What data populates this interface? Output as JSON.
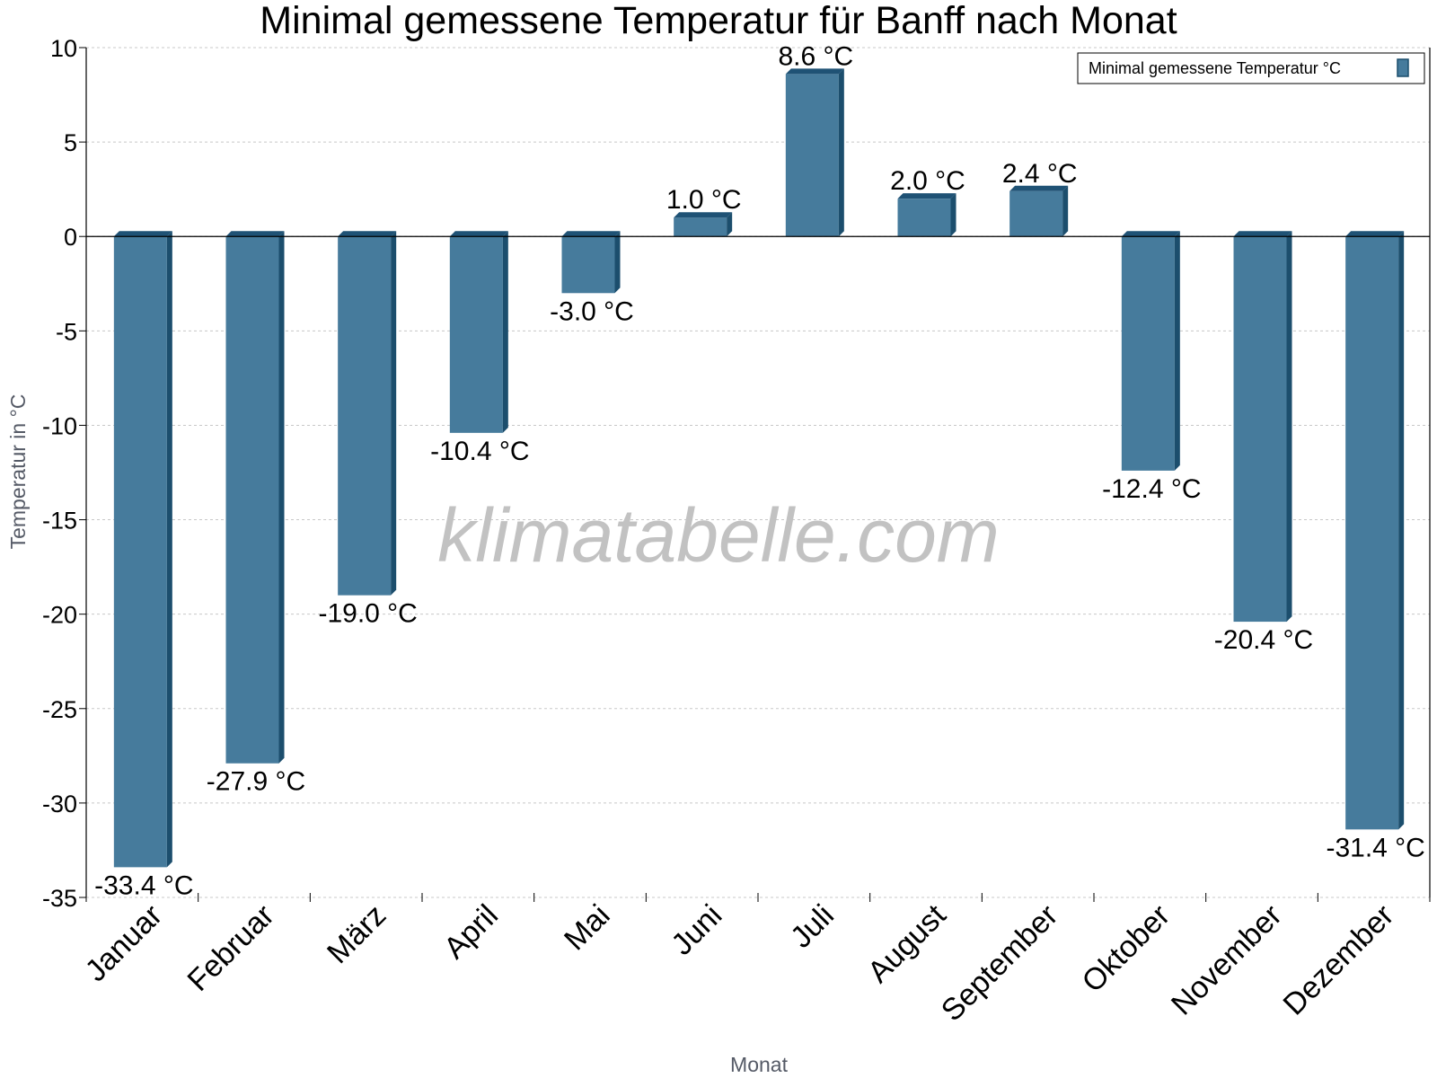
{
  "chart_data": {
    "type": "bar",
    "title": "Minimal gemessene Temperatur für Banff nach Monat",
    "xlabel": "Monat",
    "ylabel": "Temperatur in °C",
    "categories": [
      "Januar",
      "Februar",
      "März",
      "April",
      "Mai",
      "Juni",
      "Juli",
      "August",
      "September",
      "Oktober",
      "November",
      "Dezember"
    ],
    "series": [
      {
        "name": "Minimal gemessene Temperatur °C",
        "values": [
          -33.4,
          -27.9,
          -19.0,
          -10.4,
          -3.0,
          1.0,
          8.6,
          2.0,
          2.4,
          -12.4,
          -20.4,
          -31.4
        ],
        "labels": [
          "-33.4 °C",
          "-27.9 °C",
          "-19.0 °C",
          "-10.4 °C",
          "-3.0 °C",
          "1.0 °C",
          "8.6 °C",
          "2.0 °C",
          "2.4 °C",
          "-12.4 °C",
          "-20.4 °C",
          "-31.4 °C"
        ]
      }
    ],
    "ylim": [
      -35,
      10
    ],
    "yticks": [
      10,
      5,
      0,
      -5,
      -10,
      -15,
      -20,
      -25,
      -30,
      -35
    ],
    "grid": true,
    "legend_position": "top-right",
    "watermark": "klimatabelle.com",
    "colors": {
      "bar_face": "#467b9c",
      "bar_side": "#1c4e6d",
      "bar_top": "#1f5275",
      "grid": "#c8c8c8"
    }
  }
}
